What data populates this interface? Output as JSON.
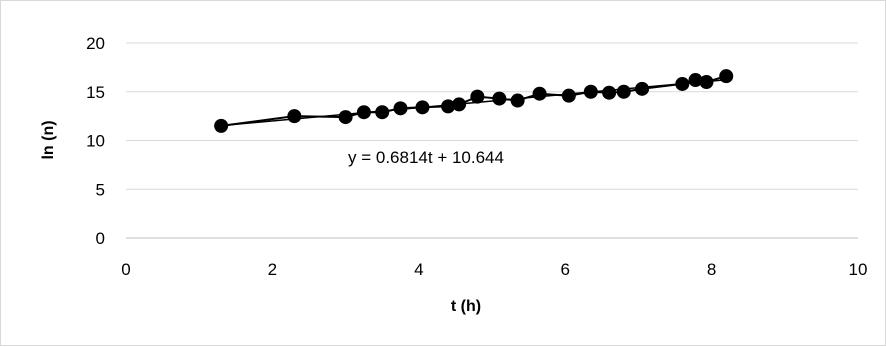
{
  "chart_data": {
    "type": "scatter",
    "xlabel": "t (h)",
    "ylabel": "ln (n)",
    "xlim": [
      0,
      10
    ],
    "ylim": [
      0,
      20
    ],
    "x_ticks": [
      "0",
      "2",
      "4",
      "6",
      "8",
      "10"
    ],
    "y_ticks": [
      "0",
      "5",
      "10",
      "15",
      "20"
    ],
    "grid": "horizontal",
    "legend": "none",
    "series": [
      {
        "marker_color": "#000000",
        "points": [
          [
            1.3,
            11.5
          ],
          [
            2.3,
            12.5
          ],
          [
            3.0,
            12.4
          ],
          [
            3.25,
            12.9
          ],
          [
            3.5,
            12.9
          ],
          [
            3.75,
            13.3
          ],
          [
            4.05,
            13.4
          ],
          [
            4.4,
            13.5
          ],
          [
            4.55,
            13.7
          ],
          [
            4.8,
            14.5
          ],
          [
            5.1,
            14.3
          ],
          [
            5.35,
            14.1
          ],
          [
            5.65,
            14.8
          ],
          [
            6.05,
            14.6
          ],
          [
            6.35,
            15.0
          ],
          [
            6.6,
            14.9
          ],
          [
            6.8,
            15.0
          ],
          [
            7.05,
            15.3
          ],
          [
            7.6,
            15.8
          ],
          [
            7.78,
            16.2
          ],
          [
            7.93,
            16.0
          ],
          [
            8.2,
            16.6
          ]
        ]
      }
    ],
    "trendline": {
      "slope": 0.6814,
      "intercept": 10.644,
      "x_range": [
        1.3,
        8.2
      ],
      "equation_label": "y = 0.6814t + 10.644"
    }
  }
}
